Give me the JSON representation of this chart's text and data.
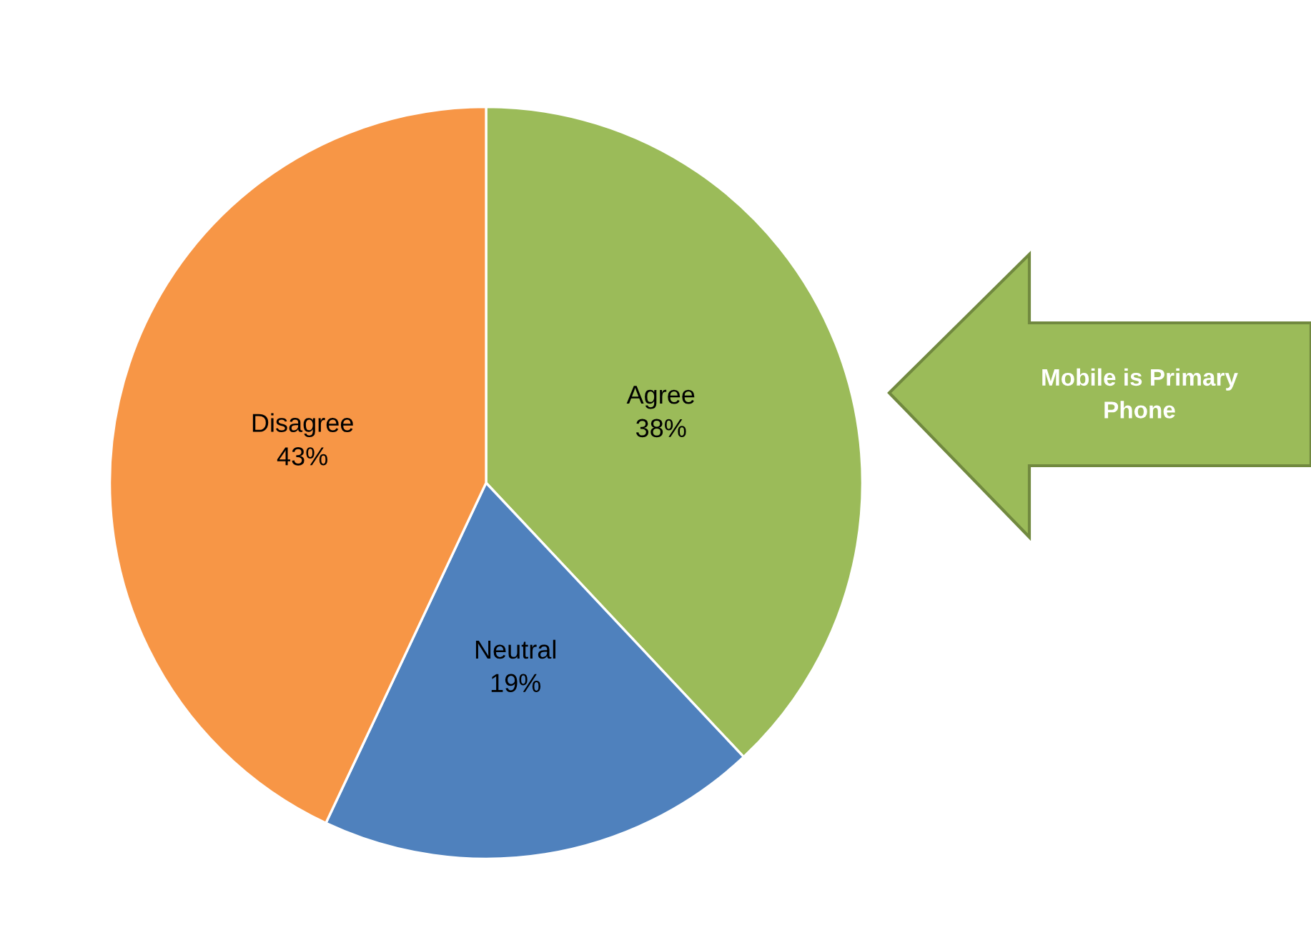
{
  "chart_data": {
    "type": "pie",
    "categories": [
      "Agree",
      "Neutral",
      "Disagree"
    ],
    "values": [
      38,
      19,
      43
    ],
    "value_labels": [
      "38%",
      "19%",
      "43%"
    ],
    "colors": [
      "#9bbb59",
      "#4f81bd",
      "#f79646"
    ],
    "annotations": [
      "Mobile is Primary\nPhone"
    ],
    "legend": false
  }
}
